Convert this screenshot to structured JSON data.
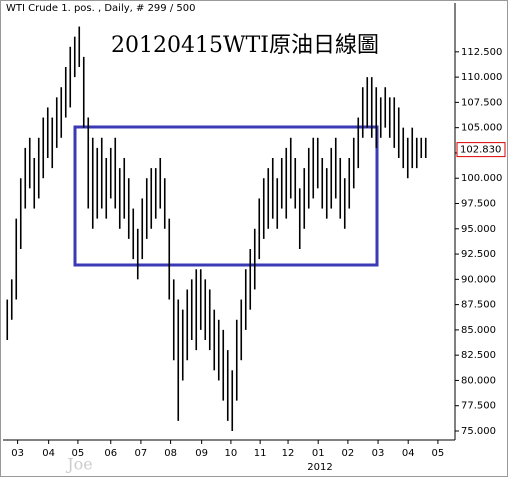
{
  "chart_data": {
    "type": "range-bar",
    "header": "WTI Crude 1. pos. , Daily, # 299 / 500",
    "title": "20120415WTI原油日線圖",
    "year_label": "2012",
    "annotation": "Joe",
    "color": "#000000",
    "low": [
      84,
      86,
      88,
      93,
      97,
      99,
      97,
      98,
      100,
      102,
      101,
      103,
      104,
      106,
      107,
      110,
      111,
      105,
      97,
      95,
      96,
      97,
      96,
      98,
      97,
      95,
      96,
      94,
      92,
      90,
      92,
      94,
      95,
      96,
      97,
      95,
      88,
      82,
      76,
      80,
      82,
      84,
      83,
      85,
      84,
      83,
      81,
      80,
      78,
      76,
      75,
      78,
      82,
      85,
      87,
      89,
      92,
      94,
      95,
      96,
      95,
      97,
      96,
      98,
      97,
      93,
      95,
      97,
      98,
      99,
      97,
      96,
      97,
      98,
      96,
      95,
      97,
      99,
      101,
      104,
      105,
      104,
      103,
      104,
      105,
      104,
      103,
      102,
      101,
      100,
      101,
      101,
      102,
      102
    ],
    "high": [
      88,
      90,
      96,
      100,
      103,
      104,
      102,
      104,
      106,
      107,
      106,
      108,
      109,
      111,
      113,
      114,
      115,
      112,
      106,
      104,
      103,
      104,
      102,
      103,
      104,
      101,
      102,
      100,
      97,
      95,
      98,
      100,
      101,
      101,
      102,
      100,
      96,
      90,
      88,
      87,
      89,
      90,
      91,
      91,
      90,
      89,
      87,
      86,
      85,
      83,
      81,
      86,
      88,
      91,
      93,
      95,
      98,
      100,
      101,
      102,
      100,
      102,
      103,
      104,
      102,
      99,
      101,
      103,
      104,
      104,
      102,
      101,
      103,
      104,
      102,
      100,
      102,
      104,
      106,
      109,
      110,
      110,
      109,
      108,
      109,
      108,
      108,
      107,
      105,
      104,
      105,
      104,
      104,
      104
    ],
    "last": {
      "value": 102.83,
      "label": "102.830"
    },
    "xlim": [
      0,
      100
    ],
    "xticks": [
      {
        "value": 2.8,
        "label": "03"
      },
      {
        "value": 9.7,
        "label": "04"
      },
      {
        "value": 16.2,
        "label": "05"
      },
      {
        "value": 23.5,
        "label": "06"
      },
      {
        "value": 30.2,
        "label": "07"
      },
      {
        "value": 36.8,
        "label": "08"
      },
      {
        "value": 43.7,
        "label": "09"
      },
      {
        "value": 50.2,
        "label": "10"
      },
      {
        "value": 56.7,
        "label": "11"
      },
      {
        "value": 62.9,
        "label": "12"
      },
      {
        "value": 69.6,
        "label": "01"
      },
      {
        "value": 76.2,
        "label": "02"
      },
      {
        "value": 82.9,
        "label": "03"
      },
      {
        "value": 89.6,
        "label": "04"
      },
      {
        "value": 96.2,
        "label": "05"
      }
    ],
    "ylim": [
      74.11,
      117.33
    ],
    "yticks": [
      {
        "value": 75,
        "label": "75.000"
      },
      {
        "value": 77.5,
        "label": "77.500"
      },
      {
        "value": 80,
        "label": "80.000"
      },
      {
        "value": 82.5,
        "label": "82.500"
      },
      {
        "value": 85,
        "label": "85.000"
      },
      {
        "value": 87.5,
        "label": "87.500"
      },
      {
        "value": 90,
        "label": "90.000"
      },
      {
        "value": 92.5,
        "label": "92.500"
      },
      {
        "value": 95,
        "label": "95.000"
      },
      {
        "value": 97.5,
        "label": "97.500"
      },
      {
        "value": 100,
        "label": "100.000"
      },
      {
        "value": 102.5,
        "label": "102.500"
      },
      {
        "value": 105,
        "label": "105.000"
      },
      {
        "value": 107.5,
        "label": "107.500"
      },
      {
        "value": 110,
        "label": "110.000"
      },
      {
        "value": 112.5,
        "label": "112.500"
      }
    ]
  }
}
